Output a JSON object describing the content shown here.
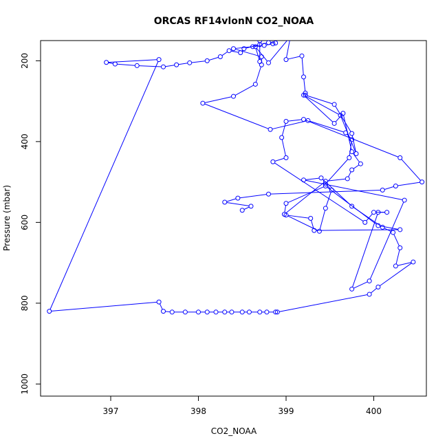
{
  "chart_data": {
    "type": "line",
    "title": "ORCAS RF14vlonN CO2_NOAA",
    "xlabel": "CO2_NOAA",
    "ylabel": "Pressure (mbar)",
    "xlim": [
      396.2,
      400.6
    ],
    "ylim": [
      1030,
      150
    ],
    "x_ticks": [
      397,
      398,
      399,
      400
    ],
    "y_ticks": [
      200,
      400,
      600,
      800,
      1000
    ],
    "grid": false,
    "marker": "open-circle",
    "colors": {
      "series": "#0000ff",
      "axes": "#000000"
    },
    "series": [
      {
        "x": [
          398.7,
          398.7,
          398.65,
          398.8,
          399.05,
          399.0,
          399.18,
          399.2,
          399.22,
          399.22,
          399.55,
          399.75,
          399.8,
          399.62,
          399.2,
          399.55,
          399.65,
          399.75,
          399.85,
          399.75,
          399.7,
          399.45,
          398.98,
          399.0,
          399.45,
          400.05,
          400.3,
          399.32,
          399.28,
          399.0,
          399.38,
          399.45,
          399.52,
          399.45,
          399.72,
          399.75,
          399.68,
          399.25,
          398.82,
          398.05,
          398.4,
          398.65,
          398.72,
          398.72,
          398.4,
          398.62,
          398.75,
          398.85,
          398.88,
          398.8,
          398.7,
          398.52,
          398.48,
          398.35,
          398.25,
          398.1,
          397.9,
          397.75,
          397.6,
          397.3,
          397.05,
          396.95,
          397.55,
          396.3,
          397.55,
          397.6,
          397.7,
          397.85,
          398.0,
          398.1,
          398.2,
          398.3,
          398.38,
          398.5,
          398.58,
          398.7,
          398.78,
          398.88,
          398.9,
          399.95,
          400.05,
          400.45,
          400.25,
          400.3,
          400.22,
          400.1,
          399.75,
          399.4,
          399.2,
          400.35,
          399.95,
          399.75,
          400.05,
          400.15,
          400.0,
          399.9,
          398.85,
          399.0,
          398.95,
          399.0,
          399.2,
          400.3,
          400.55,
          400.25,
          400.1,
          398.8,
          398.45,
          398.3,
          398.6,
          398.5
        ],
        "y": [
          150,
          202,
          165,
          205,
          140,
          197,
          188,
          240,
          280,
          285,
          308,
          380,
          430,
          335,
          285,
          355,
          330,
          425,
          455,
          470,
          492,
          498,
          580,
          553,
          510,
          608,
          618,
          620,
          590,
          582,
          622,
          565,
          520,
          505,
          440,
          395,
          378,
          348,
          370,
          305,
          288,
          258,
          210,
          190,
          170,
          165,
          162,
          158,
          156,
          155,
          160,
          170,
          180,
          175,
          190,
          200,
          205,
          210,
          215,
          212,
          208,
          204,
          197,
          820,
          797,
          820,
          822,
          822,
          822,
          822,
          822,
          822,
          822,
          822,
          822,
          822,
          822,
          822,
          822,
          778,
          760,
          698,
          708,
          663,
          625,
          612,
          560,
          490,
          495,
          545,
          745,
          765,
          575,
          575,
          575,
          600,
          450,
          440,
          390,
          350,
          345,
          440,
          500,
          510,
          520,
          530,
          540,
          550,
          560,
          570
        ]
      }
    ]
  }
}
